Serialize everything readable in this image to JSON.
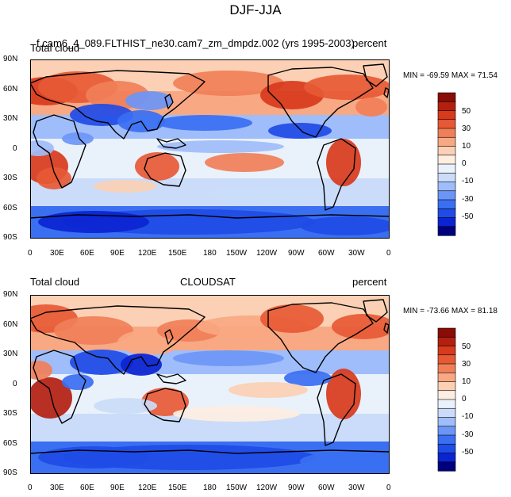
{
  "title": "DJF-JJA",
  "palette": [
    "#00007f",
    "#0b24d1",
    "#1f4be6",
    "#3a6ff2",
    "#6b96f7",
    "#9fbdfa",
    "#cadcf9",
    "#e9f1fb",
    "#fdeee2",
    "#fbd0b4",
    "#f8a882",
    "#f07f58",
    "#e75935",
    "#d83a1c",
    "#b32010",
    "#8a0c06"
  ],
  "panels": [
    {
      "left_text": "Total cloud",
      "center_text": "f.cam6_4_089.FLTHIST_ne30.cam7_zm_dmpdz.002 (yrs 1995-2003)",
      "right_text": "percent",
      "min_max": "MIN = -69.59 MAX =  71.54",
      "lat_labels": [
        "90N",
        "60N",
        "30N",
        "0",
        "30S",
        "60S",
        "90S"
      ],
      "lon_labels": [
        "0",
        "30E",
        "60E",
        "90E",
        "120E",
        "150E",
        "180",
        "150W",
        "120W",
        "90W",
        "60W",
        "30W",
        "0"
      ],
      "colorbar_labels": [
        "50",
        "30",
        "10",
        "0",
        "-10",
        "-30",
        "-50"
      ]
    },
    {
      "left_text": "Total cloud",
      "center_text": "CLOUDSAT",
      "right_text": "percent",
      "min_max": "MIN = -73.66 MAX =  81.18",
      "lat_labels": [
        "90N",
        "60N",
        "30N",
        "0",
        "30S",
        "60S",
        "90S"
      ],
      "lon_labels": [
        "0",
        "30E",
        "60E",
        "90E",
        "120E",
        "150E",
        "180",
        "150W",
        "120W",
        "90W",
        "60W",
        "30W",
        "0"
      ],
      "colorbar_labels": [
        "50",
        "30",
        "10",
        "0",
        "-10",
        "-30",
        "-50"
      ]
    }
  ]
}
